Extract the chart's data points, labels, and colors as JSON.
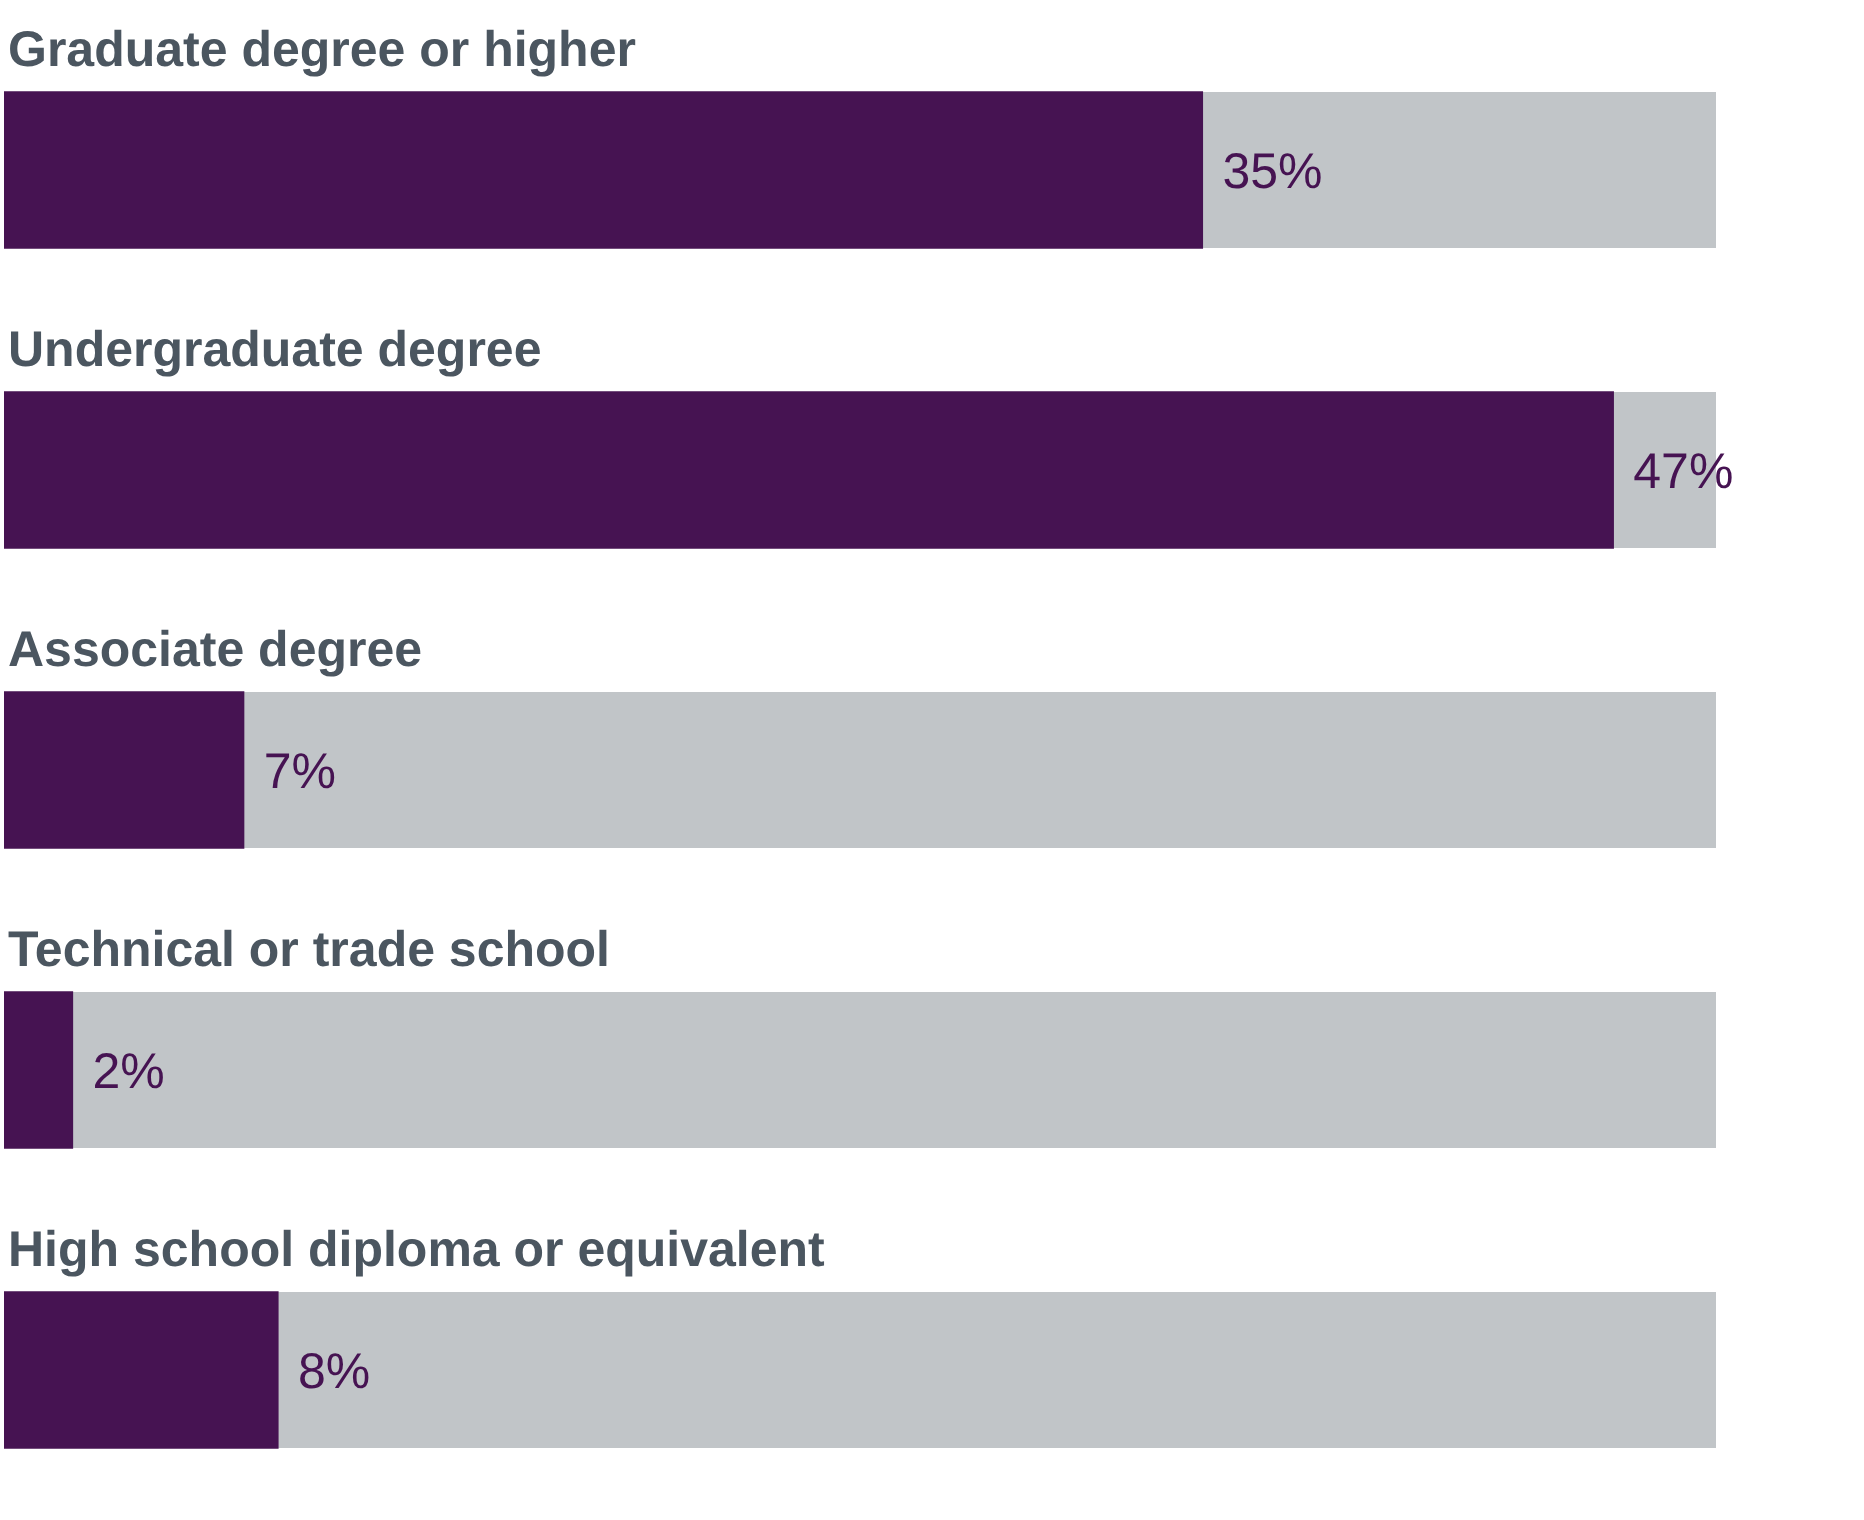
{
  "chart_data": {
    "type": "bar",
    "orientation": "horizontal",
    "categories": [
      "Graduate degree or higher",
      "Undergraduate degree",
      "Associate degree",
      "Technical or trade school",
      "High school diploma or equivalent"
    ],
    "series": [
      {
        "color": "#461352",
        "values": [
          35,
          47,
          7,
          2,
          8
        ],
        "value_labels": [
          "35%",
          "47%",
          "7%",
          "2%",
          "8%"
        ]
      }
    ],
    "legend": false
  }
}
